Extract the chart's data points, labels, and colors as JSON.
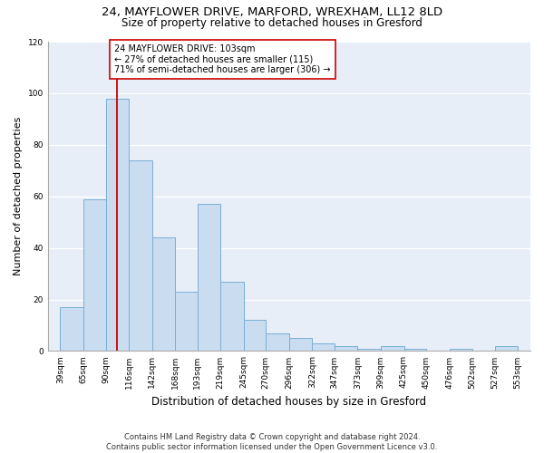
{
  "title1": "24, MAYFLOWER DRIVE, MARFORD, WREXHAM, LL12 8LD",
  "title2": "Size of property relative to detached houses in Gresford",
  "xlabel": "Distribution of detached houses by size in Gresford",
  "ylabel": "Number of detached properties",
  "bin_edges": [
    39,
    65,
    90,
    116,
    142,
    168,
    193,
    219,
    245,
    270,
    296,
    322,
    347,
    373,
    399,
    425,
    450,
    476,
    502,
    527,
    553
  ],
  "bar_heights": [
    17,
    59,
    98,
    74,
    44,
    23,
    57,
    27,
    12,
    7,
    5,
    3,
    2,
    1,
    2,
    1,
    0,
    1,
    0,
    2
  ],
  "bar_color": "#c9dcf0",
  "bar_edge_color": "#7aafd4",
  "annotation_text": "24 MAYFLOWER DRIVE: 103sqm\n← 27% of detached houses are smaller (115)\n71% of semi-detached houses are larger (306) →",
  "property_size": 103,
  "vline_color": "#cc0000",
  "ylim": [
    0,
    120
  ],
  "yticks": [
    0,
    20,
    40,
    60,
    80,
    100,
    120
  ],
  "footer": "Contains HM Land Registry data © Crown copyright and database right 2024.\nContains public sector information licensed under the Open Government Licence v3.0.",
  "bg_color": "#e8eef8",
  "title1_fontsize": 9.5,
  "title2_fontsize": 8.5,
  "ylabel_fontsize": 8,
  "xlabel_fontsize": 8.5,
  "tick_fontsize": 6.5,
  "ann_fontsize": 7,
  "footer_fontsize": 6
}
